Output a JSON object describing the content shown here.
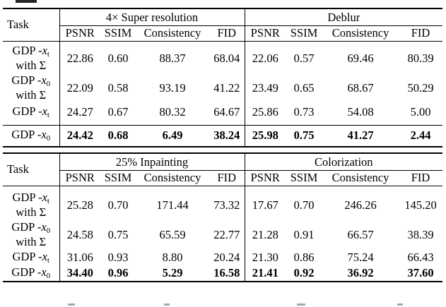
{
  "tables": [
    {
      "task_label": "Task",
      "group_left": "4× Super resolution",
      "group_right": "Deblur",
      "columns": [
        "PSNR",
        "SSIM",
        "Consistency",
        "FID"
      ],
      "rows": [
        {
          "method_line1": "GDP -",
          "method_var": "x",
          "method_sub": "t",
          "method_line2": "with Σ",
          "left": [
            "22.86",
            "0.60",
            "88.37",
            "68.04"
          ],
          "right": [
            "22.06",
            "0.57",
            "69.46",
            "80.39"
          ],
          "bold": false
        },
        {
          "method_line1": "GDP -",
          "method_var": "x",
          "method_sub": "0",
          "method_line2": "with Σ",
          "left": [
            "22.09",
            "0.58",
            "93.19",
            "41.22"
          ],
          "right": [
            "23.49",
            "0.65",
            "68.67",
            "50.29"
          ],
          "bold": false
        },
        {
          "method_line1": "GDP -",
          "method_var": "x",
          "method_sub": "t",
          "method_line2": "",
          "left": [
            "24.27",
            "0.67",
            "80.32",
            "64.67"
          ],
          "right": [
            "25.86",
            "0.73",
            "54.08",
            "5.00"
          ],
          "bold": false
        },
        {
          "method_line1": "GDP -",
          "method_var": "x",
          "method_sub": "0",
          "method_line2": "",
          "left": [
            "24.42",
            "0.68",
            "6.49",
            "38.24"
          ],
          "right": [
            "25.98",
            "0.75",
            "41.27",
            "2.44"
          ],
          "bold": true
        }
      ]
    },
    {
      "task_label": "Task",
      "group_left": "25% Inpainting",
      "group_right": "Colorization",
      "columns": [
        "PSNR",
        "SSIM",
        "Consistency",
        "FID"
      ],
      "rows": [
        {
          "method_line1": "GDP -",
          "method_var": "x",
          "method_sub": "t",
          "method_line2": "with Σ",
          "left": [
            "25.28",
            "0.70",
            "171.44",
            "73.32"
          ],
          "right": [
            "17.67",
            "0.70",
            "246.26",
            "145.20"
          ],
          "bold": false
        },
        {
          "method_line1": "GDP -",
          "method_var": "x",
          "method_sub": "0",
          "method_line2": "with Σ",
          "left": [
            "24.58",
            "0.75",
            "65.59",
            "22.77"
          ],
          "right": [
            "21.28",
            "0.91",
            "66.57",
            "38.39"
          ],
          "bold": false
        },
        {
          "method_line1": "GDP -",
          "method_var": "x",
          "method_sub": "t",
          "method_line2": "",
          "left": [
            "31.06",
            "0.93",
            "8.80",
            "20.24"
          ],
          "right": [
            "21.30",
            "0.86",
            "75.24",
            "66.43"
          ],
          "bold": false
        },
        {
          "method_line1": "GDP -",
          "method_var": "x",
          "method_sub": "0",
          "method_line2": "",
          "left": [
            "34.40",
            "0.96",
            "5.29",
            "16.58"
          ],
          "right": [
            "21.41",
            "0.92",
            "36.92",
            "37.60"
          ],
          "bold": true
        }
      ]
    }
  ]
}
